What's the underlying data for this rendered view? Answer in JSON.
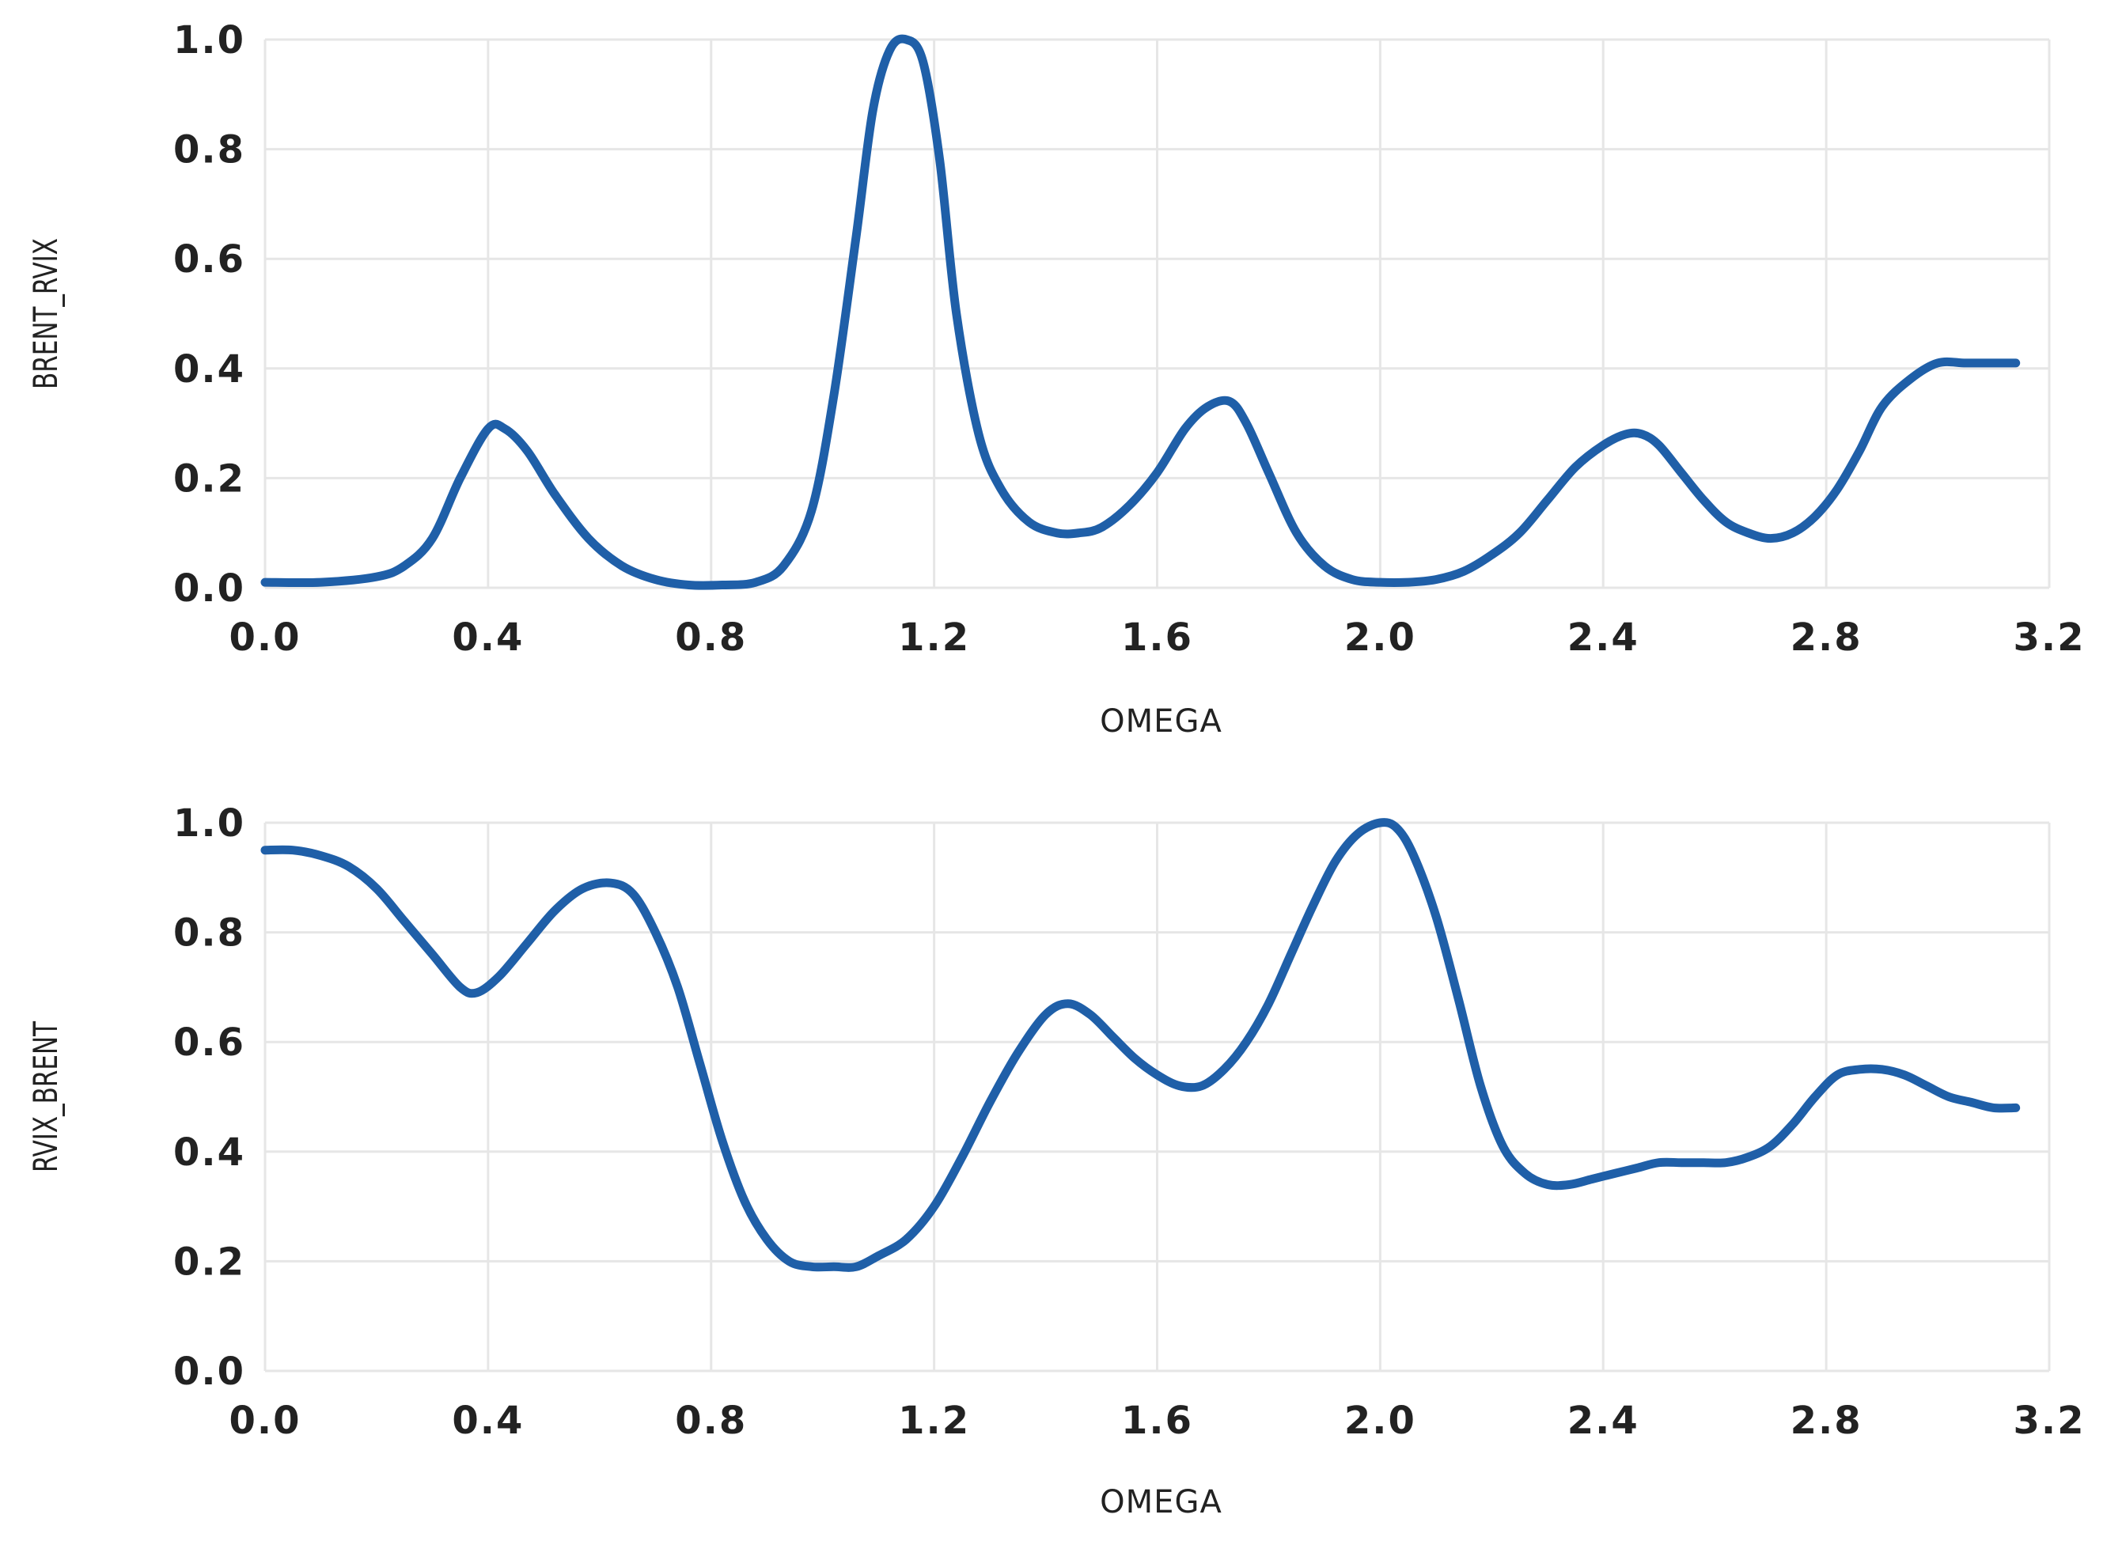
{
  "colors": {
    "series": "#1f5fa8",
    "grid": "#e6e6e6",
    "text": "#222222"
  },
  "chart_data": [
    {
      "type": "line",
      "xlabel": "OMEGA",
      "ylabel": "BRENT_RVIX",
      "xlim": [
        0.0,
        3.2
      ],
      "ylim": [
        0.0,
        1.0
      ],
      "xticks": [
        "0.0",
        "0.4",
        "0.8",
        "1.2",
        "1.6",
        "2.0",
        "2.4",
        "2.8",
        "3.2"
      ],
      "yticks": [
        "0.0",
        "0.2",
        "0.4",
        "0.6",
        "0.8",
        "1.0"
      ],
      "grid": true,
      "series": [
        {
          "x": [
            0.0,
            0.1,
            0.2,
            0.25,
            0.3,
            0.35,
            0.4,
            0.43,
            0.47,
            0.52,
            0.58,
            0.64,
            0.7,
            0.76,
            0.82,
            0.88,
            0.93,
            0.98,
            1.02,
            1.06,
            1.09,
            1.12,
            1.15,
            1.18,
            1.21,
            1.24,
            1.28,
            1.32,
            1.37,
            1.42,
            1.46,
            1.5,
            1.55,
            1.6,
            1.65,
            1.69,
            1.73,
            1.76,
            1.8,
            1.85,
            1.9,
            1.95,
            2.0,
            2.05,
            2.1,
            2.15,
            2.2,
            2.25,
            2.3,
            2.35,
            2.4,
            2.44,
            2.47,
            2.5,
            2.54,
            2.58,
            2.62,
            2.66,
            2.7,
            2.74,
            2.78,
            2.82,
            2.86,
            2.9,
            2.95,
            3.0,
            3.05,
            3.1,
            3.14
          ],
          "values": [
            0.01,
            0.01,
            0.02,
            0.04,
            0.09,
            0.2,
            0.29,
            0.29,
            0.25,
            0.17,
            0.09,
            0.04,
            0.015,
            0.005,
            0.005,
            0.01,
            0.04,
            0.14,
            0.35,
            0.64,
            0.87,
            0.98,
            1.0,
            0.96,
            0.78,
            0.5,
            0.28,
            0.18,
            0.12,
            0.1,
            0.1,
            0.11,
            0.15,
            0.21,
            0.29,
            0.33,
            0.34,
            0.3,
            0.21,
            0.1,
            0.04,
            0.015,
            0.01,
            0.01,
            0.015,
            0.03,
            0.06,
            0.1,
            0.16,
            0.22,
            0.26,
            0.28,
            0.28,
            0.26,
            0.21,
            0.16,
            0.12,
            0.1,
            0.09,
            0.1,
            0.13,
            0.18,
            0.25,
            0.33,
            0.38,
            0.41,
            0.41,
            0.41,
            0.41
          ]
        }
      ]
    },
    {
      "type": "line",
      "xlabel": "OMEGA",
      "ylabel": "RVIX_BRENT",
      "xlim": [
        0.0,
        3.2
      ],
      "ylim": [
        0.0,
        1.0
      ],
      "xticks": [
        "0.0",
        "0.4",
        "0.8",
        "1.2",
        "1.6",
        "2.0",
        "2.4",
        "2.8",
        "3.2"
      ],
      "yticks": [
        "0.0",
        "0.2",
        "0.4",
        "0.6",
        "0.8",
        "1.0"
      ],
      "grid": true,
      "series": [
        {
          "x": [
            0.0,
            0.05,
            0.1,
            0.15,
            0.2,
            0.25,
            0.3,
            0.35,
            0.38,
            0.42,
            0.47,
            0.52,
            0.57,
            0.62,
            0.66,
            0.7,
            0.74,
            0.78,
            0.82,
            0.86,
            0.9,
            0.94,
            0.98,
            1.02,
            1.06,
            1.1,
            1.15,
            1.2,
            1.25,
            1.3,
            1.35,
            1.4,
            1.44,
            1.48,
            1.52,
            1.56,
            1.6,
            1.64,
            1.68,
            1.72,
            1.76,
            1.8,
            1.84,
            1.88,
            1.92,
            1.96,
            2.0,
            2.03,
            2.06,
            2.1,
            2.14,
            2.18,
            2.22,
            2.26,
            2.3,
            2.34,
            2.38,
            2.42,
            2.46,
            2.5,
            2.54,
            2.58,
            2.62,
            2.66,
            2.7,
            2.74,
            2.78,
            2.82,
            2.86,
            2.9,
            2.94,
            2.98,
            3.02,
            3.06,
            3.1,
            3.14
          ],
          "values": [
            0.95,
            0.95,
            0.94,
            0.92,
            0.88,
            0.82,
            0.76,
            0.7,
            0.69,
            0.72,
            0.78,
            0.84,
            0.88,
            0.89,
            0.87,
            0.8,
            0.7,
            0.56,
            0.42,
            0.31,
            0.24,
            0.2,
            0.19,
            0.19,
            0.19,
            0.21,
            0.24,
            0.3,
            0.39,
            0.49,
            0.58,
            0.65,
            0.67,
            0.65,
            0.61,
            0.57,
            0.54,
            0.52,
            0.52,
            0.55,
            0.6,
            0.67,
            0.76,
            0.85,
            0.93,
            0.98,
            1.0,
            0.99,
            0.94,
            0.83,
            0.68,
            0.52,
            0.41,
            0.36,
            0.34,
            0.34,
            0.35,
            0.36,
            0.37,
            0.38,
            0.38,
            0.38,
            0.38,
            0.39,
            0.41,
            0.45,
            0.5,
            0.54,
            0.55,
            0.55,
            0.54,
            0.52,
            0.5,
            0.49,
            0.48,
            0.48
          ]
        }
      ]
    }
  ]
}
